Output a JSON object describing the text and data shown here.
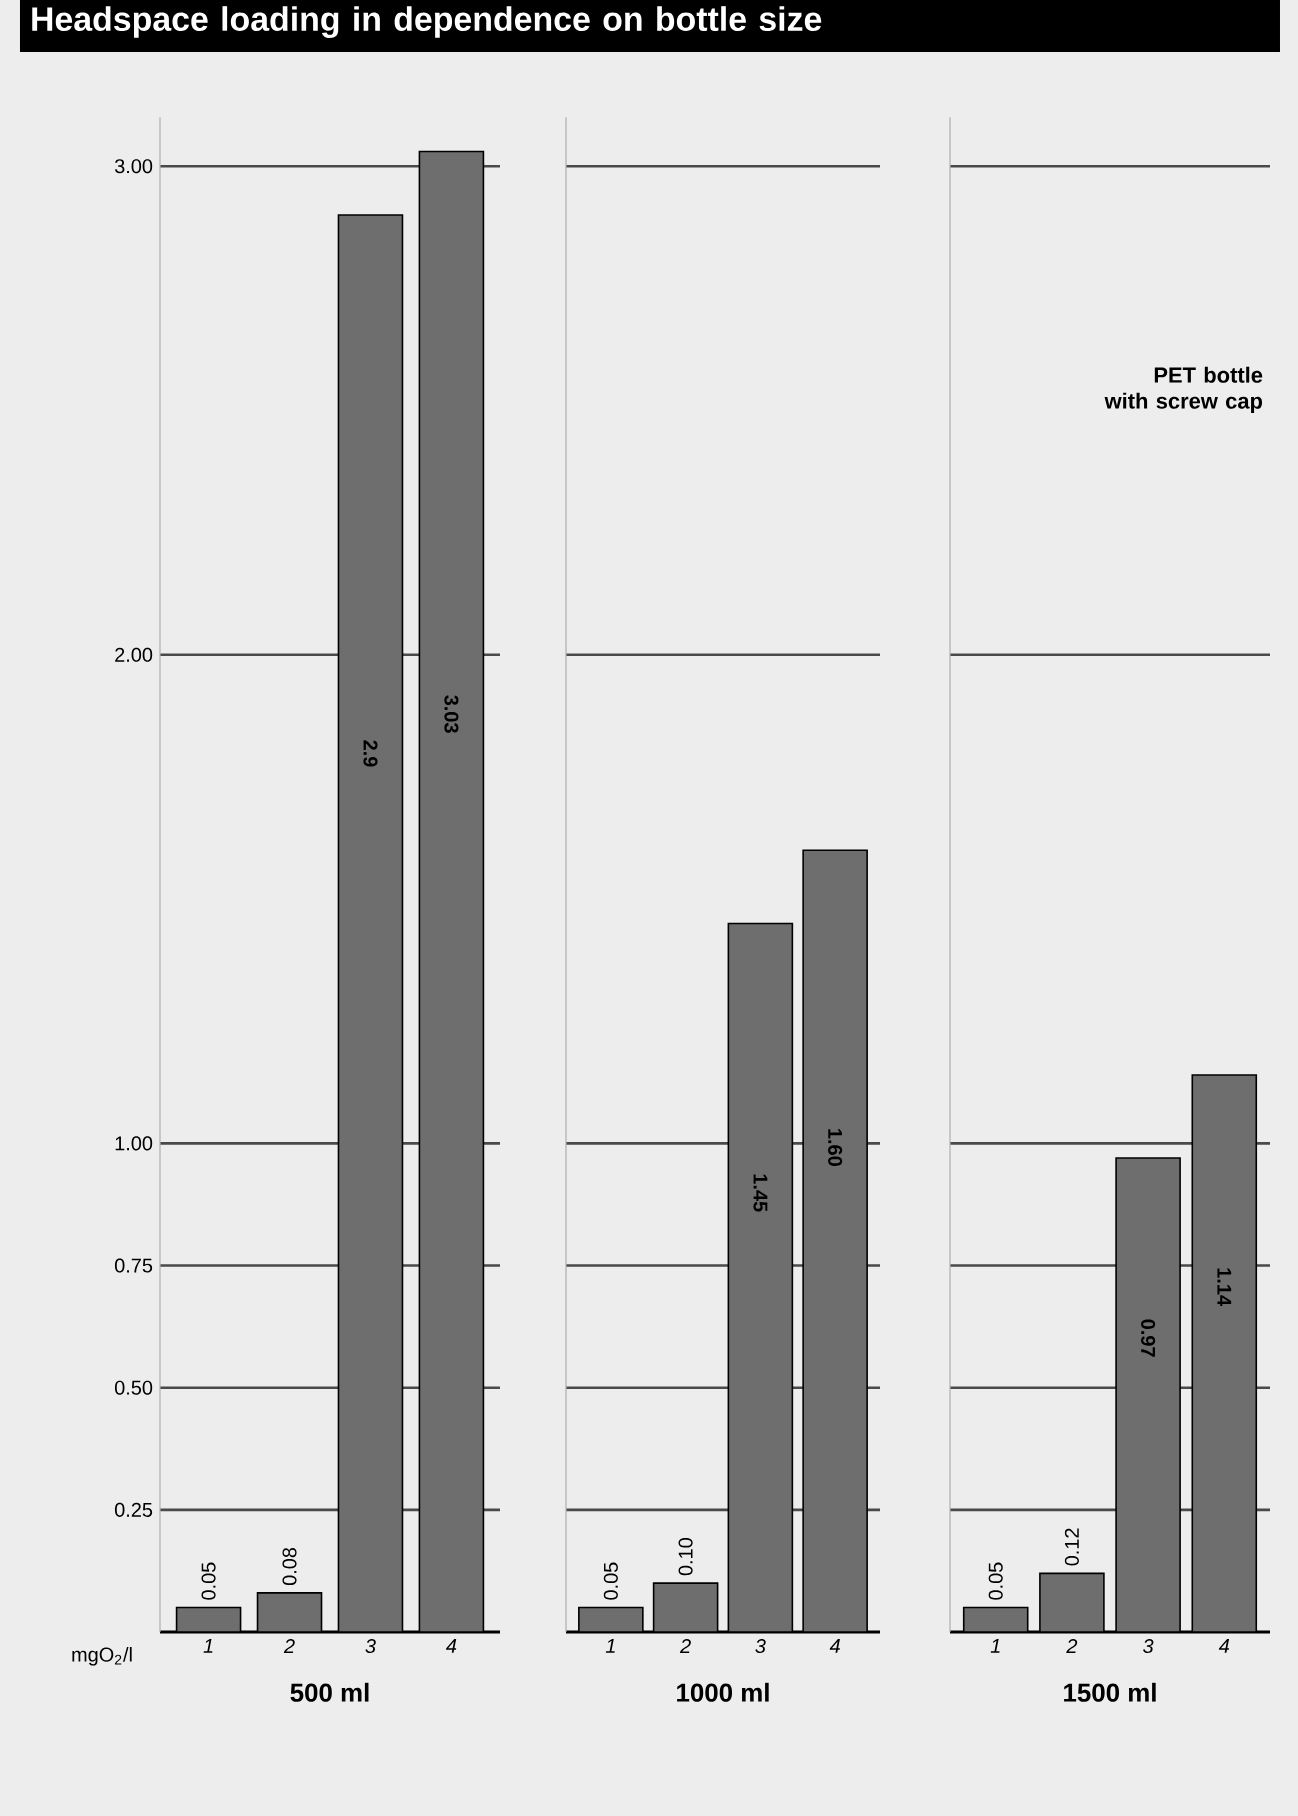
{
  "chart_data": [
    {
      "type": "bar",
      "title": "Headspace loading in dependence on bottle size",
      "xlabel": "500 ml",
      "ylabel": "mgO$_{2}$/l",
      "categories": [
        "1",
        "2",
        "3",
        "4"
      ],
      "values": [
        0.05,
        0.08,
        2.9,
        3.03
      ],
      "value_labels": [
        "0.05",
        "0.08",
        "2.9",
        "3.03"
      ],
      "color": "#6e6e6e",
      "ylim": [
        0,
        3.1
      ],
      "yticks": [
        {
          "value": 0.25,
          "label": "0.25"
        },
        {
          "value": 0.5,
          "label": "0.50"
        },
        {
          "value": 0.75,
          "label": "0.75"
        },
        {
          "value": 1,
          "label": "1.00"
        },
        {
          "value": 2,
          "label": "2.00"
        },
        {
          "value": 3,
          "label": "3.00"
        }
      ],
      "grid": "y"
    },
    {
      "type": "bar",
      "xlabel": "1000 ml",
      "categories": [
        "1",
        "2",
        "3",
        "4"
      ],
      "values": [
        0.05,
        0.1,
        1.45,
        1.6
      ],
      "value_labels": [
        "0.05",
        "0.10",
        "1.45",
        "1.60"
      ],
      "color": "#6e6e6e",
      "ylim": [
        0,
        3.1
      ],
      "yticks": [
        {
          "value": 0.25,
          "label": null
        },
        {
          "value": 0.5,
          "label": null
        },
        {
          "value": 0.75,
          "label": null
        },
        {
          "value": 1,
          "label": null
        },
        {
          "value": 2,
          "label": null
        },
        {
          "value": 3,
          "label": null
        }
      ],
      "grid": "y",
      "tick_labels": "x"
    },
    {
      "type": "bar",
      "xlabel": "1500 ml",
      "annotations": [
        "PET bottle with screw cap"
      ],
      "categories": [
        "1",
        "2",
        "3",
        "4"
      ],
      "values": [
        0.05,
        0.12,
        0.97,
        1.14
      ],
      "value_labels": [
        "0.05",
        "0.12",
        "0.97",
        "1.14"
      ],
      "color": "#6e6e6e",
      "ylim": [
        0,
        3.1
      ],
      "yticks": [
        {
          "value": 0.25,
          "label": null
        },
        {
          "value": 0.5,
          "label": null
        },
        {
          "value": 0.75,
          "label": null
        },
        {
          "value": 1,
          "label": null
        },
        {
          "value": 2,
          "label": null
        },
        {
          "value": 3,
          "label": null
        }
      ],
      "grid": "y",
      "tick_labels": "x"
    }
  ]
}
